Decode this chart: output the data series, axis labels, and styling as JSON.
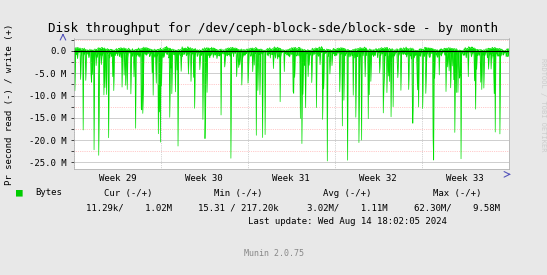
{
  "title": "Disk throughput for /dev/ceph-block-sde/block-sde - by month",
  "ylabel": "Pr second read (-) / write (+)",
  "xlabel_ticks": [
    "Week 29",
    "Week 30",
    "Week 31",
    "Week 32",
    "Week 33"
  ],
  "ylim": [
    -26500000,
    2800000
  ],
  "ytick_vals": [
    0,
    -5000000,
    -10000000,
    -15000000,
    -20000000,
    -25000000
  ],
  "ytick_labels": [
    "0.0",
    "-5.0 M",
    "-10.0 M",
    "-15.0 M",
    "-20.0 M",
    "-25.0 M"
  ],
  "line_color": "#00e000",
  "bg_color": "#e8e8e8",
  "plot_bg_color": "#ffffff",
  "grid_color_major": "#aaaaaa",
  "grid_color_minor": "#ff9999",
  "zero_line_color": "#000000",
  "legend_label": "Bytes",
  "legend_color": "#00cc00",
  "footer_cur_label": "Cur (-/+)",
  "footer_cur_val": "11.29k/    1.02M",
  "footer_min_label": "Min (-/+)",
  "footer_min_val": "15.31 / 217.20k",
  "footer_avg_label": "Avg (-/+)",
  "footer_avg_val": "3.02M/    1.11M",
  "footer_max_label": "Max (-/+)",
  "footer_max_val": "62.30M/    9.58M",
  "footer_last_update": "Last update: Wed Aug 14 18:02:05 2024",
  "munin_version": "Munin 2.0.75",
  "watermark": "RRDTOOL / TOBI OETIKER",
  "title_fontsize": 9,
  "axis_label_fontsize": 6.5,
  "tick_fontsize": 6.5,
  "footer_fontsize": 6.5,
  "munin_fontsize": 6,
  "watermark_fontsize": 5
}
